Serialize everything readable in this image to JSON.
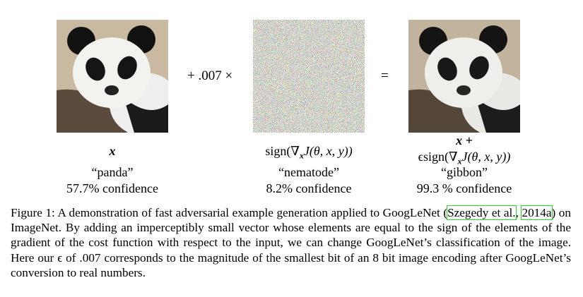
{
  "figure": {
    "operators": [
      "+ .007 ×",
      "="
    ],
    "panels": [
      {
        "math": [
          "x"
        ],
        "label": "“panda”",
        "confidence": "57.7% confidence"
      },
      {
        "math": [
          "sign(∇",
          "x",
          "J(θ, x, y))"
        ],
        "label": "“nematode”",
        "confidence": "8.2% confidence"
      },
      {
        "math_line1": "x +",
        "math": [
          "ϵsign(∇",
          "x",
          "J(θ, x, y))"
        ],
        "label": "“gibbon”",
        "confidence": "99.3 % confidence"
      }
    ]
  },
  "caption": {
    "before": "Figure 1:  A demonstration of fast adversarial example generation applied to GoogLeNet (",
    "citation_author": "Szegedy et al.",
    "citation_year": "2014a",
    "after": ") on ImageNet. By adding an imperceptibly small vector whose elements are equal to the sign of the elements of the gradient of the cost function with respect to the input, we can change GoogLeNet’s classification of the image. Here our ϵ of .007 corresponds to the magnitude of the smallest bit of an 8 bit image encoding after GoogLeNet’s conversion to real numbers."
  }
}
